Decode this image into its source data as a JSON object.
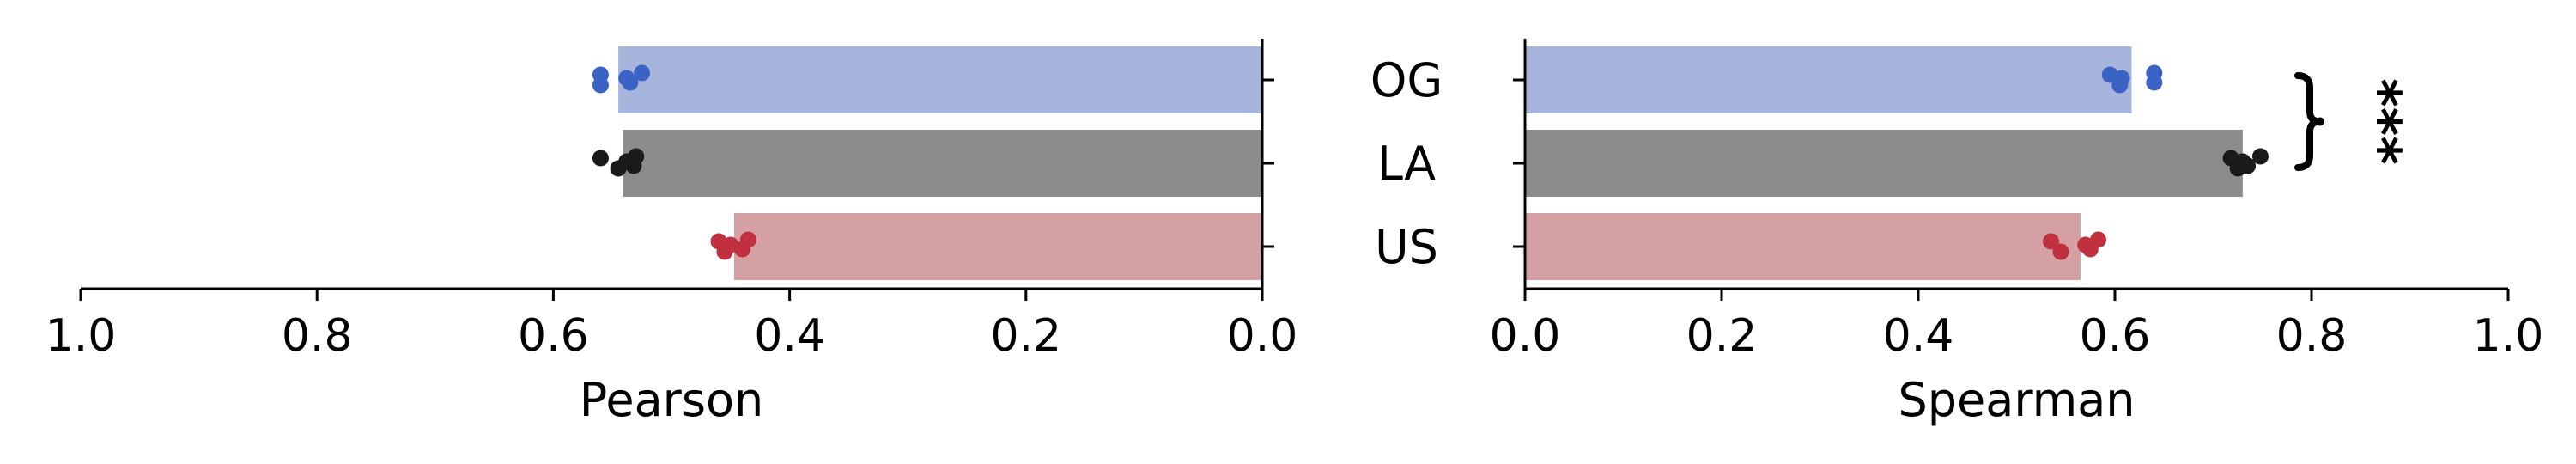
{
  "chart_data": [
    {
      "type": "bar",
      "orientation": "horizontal",
      "x_axis_direction": "reversed",
      "xlabel": "Pearson",
      "xlim": [
        0,
        1.0
      ],
      "xticks": [
        "1.0",
        "0.8",
        "0.6",
        "0.4",
        "0.2",
        "0.0"
      ],
      "categories": [
        "OG",
        "LA",
        "US"
      ],
      "values": [
        0.545,
        0.541,
        0.447
      ],
      "points": [
        [
          0.56,
          0.56,
          0.538,
          0.535,
          0.525
        ],
        [
          0.56,
          0.545,
          0.538,
          0.532,
          0.53
        ],
        [
          0.46,
          0.455,
          0.45,
          0.44,
          0.435
        ]
      ],
      "colors": [
        "#a7b4db",
        "#8c8c8c",
        "#d5a0a4"
      ],
      "point_colors": [
        "#3b63c6",
        "#1a1a1a",
        "#c0303e"
      ]
    },
    {
      "type": "bar",
      "orientation": "horizontal",
      "xlabel": "Spearman",
      "xlim": [
        0,
        1.0
      ],
      "xticks": [
        "0.0",
        "0.2",
        "0.4",
        "0.6",
        "0.8",
        "1.0"
      ],
      "categories": [
        "OG",
        "LA",
        "US"
      ],
      "values": [
        0.617,
        0.73,
        0.565
      ],
      "points": [
        [
          0.595,
          0.605,
          0.607,
          0.64,
          0.64
        ],
        [
          0.718,
          0.725,
          0.73,
          0.735,
          0.748
        ],
        [
          0.535,
          0.545,
          0.57,
          0.575,
          0.583
        ]
      ],
      "colors": [
        "#a7b4db",
        "#8c8c8c",
        "#d5a0a4"
      ],
      "point_colors": [
        "#3b63c6",
        "#1a1a1a",
        "#c0303e"
      ],
      "annotation": {
        "from": "OG",
        "to": "LA",
        "text": "***"
      }
    }
  ]
}
